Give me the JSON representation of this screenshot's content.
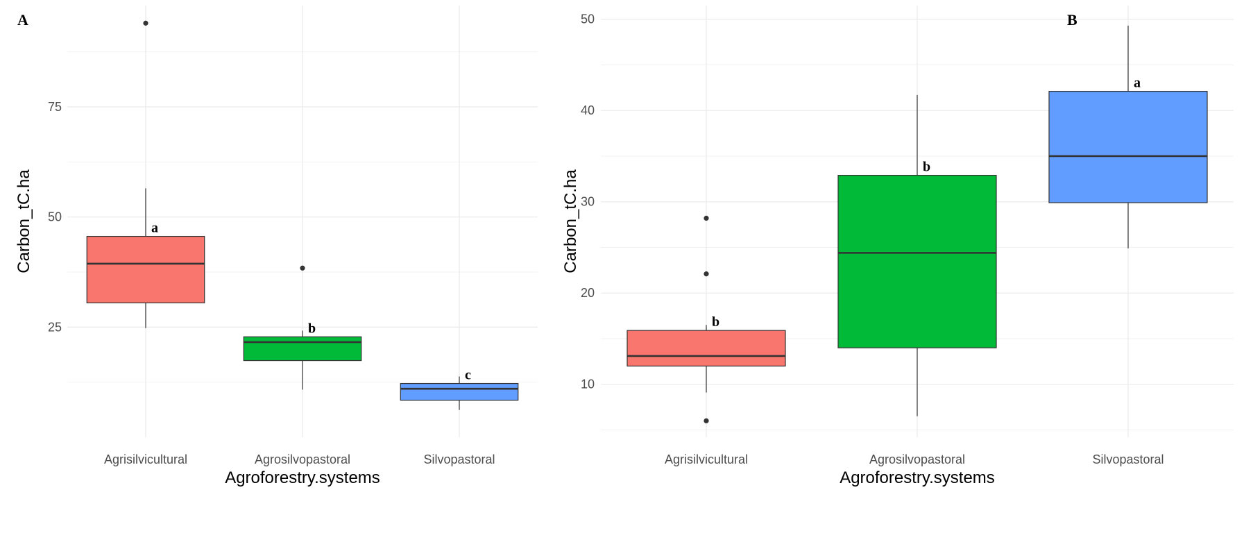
{
  "chart_data": [
    {
      "type": "boxplot",
      "panel": "A",
      "xlabel": "Agroforestry.systems",
      "ylabel": "Carbon_tC.ha",
      "ylim": [
        0,
        98
      ],
      "yticks": [
        25,
        50,
        75
      ],
      "grid": true,
      "categories": [
        "Agrisilvicultural",
        "Agrosilvopastoral",
        "Silvopastoral"
      ],
      "boxes": [
        {
          "category": "Agrisilvicultural",
          "color": "#F8766D",
          "whisker_low": 24.8,
          "q1": 30.5,
          "median": 39.4,
          "q3": 45.6,
          "whisker_high": 56.5,
          "outliers": [
            94.0
          ],
          "group_letter": "a"
        },
        {
          "category": "Agrosilvopastoral",
          "color": "#00BA38",
          "whisker_low": 10.8,
          "q1": 17.4,
          "median": 21.6,
          "q3": 22.8,
          "whisker_high": 24.2,
          "outliers": [
            38.4
          ],
          "group_letter": "b"
        },
        {
          "category": "Silvopastoral",
          "color": "#619CFF",
          "whisker_low": 6.2,
          "q1": 8.4,
          "median": 11.0,
          "q3": 12.2,
          "whisker_high": 13.8,
          "outliers": [],
          "group_letter": "c"
        }
      ]
    },
    {
      "type": "boxplot",
      "panel": "B",
      "xlabel": "Agroforestry.systems",
      "ylabel": "Carbon_tC.ha",
      "ylim": [
        4.2,
        51.5
      ],
      "yticks": [
        10,
        20,
        30,
        40,
        50
      ],
      "grid": true,
      "categories": [
        "Agrisilvicultural",
        "Agrosilvopastoral",
        "Silvopastoral"
      ],
      "boxes": [
        {
          "category": "Agrisilvicultural",
          "color": "#F8766D",
          "whisker_low": 9.1,
          "q1": 12.0,
          "median": 13.1,
          "q3": 15.9,
          "whisker_high": 16.5,
          "outliers": [
            28.2,
            22.1,
            6.0
          ],
          "group_letter": "b"
        },
        {
          "category": "Agrosilvopastoral",
          "color": "#00BA38",
          "whisker_low": 6.5,
          "q1": 14.0,
          "median": 24.4,
          "q3": 32.9,
          "whisker_high": 41.7,
          "outliers": [],
          "group_letter": "b"
        },
        {
          "category": "Silvopastoral",
          "color": "#619CFF",
          "whisker_low": 24.9,
          "q1": 29.9,
          "median": 35.0,
          "q3": 42.1,
          "whisker_high": 49.3,
          "outliers": [],
          "group_letter": "a"
        }
      ]
    }
  ]
}
